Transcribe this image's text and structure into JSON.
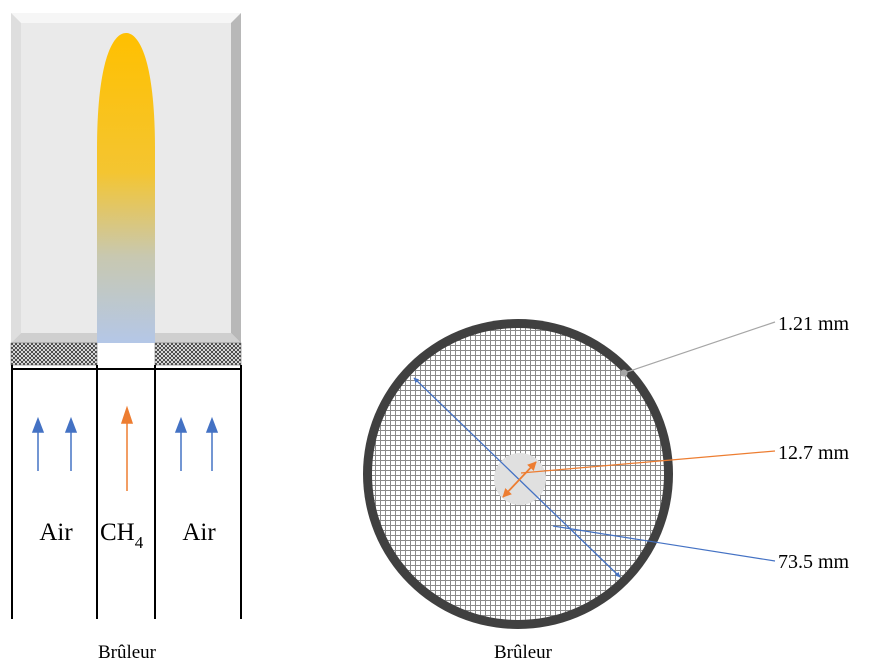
{
  "left_diagram": {
    "labels": {
      "air_left": "Air",
      "fuel": "CH",
      "fuel_subscript": "4",
      "air_right": "Air"
    },
    "caption": "Brûleur",
    "colors": {
      "flame_top": "#ffc000",
      "flame_bottom": "#b4c7e7",
      "air_arrow": "#4472c4",
      "fuel_arrow": "#ed7d31",
      "chimney": "#eaeaea"
    }
  },
  "right_diagram": {
    "caption": "Brûleur",
    "dimensions": {
      "wall": "1.21 mm",
      "fuel_tube": "12.7 mm",
      "outer_diameter": "73.5 mm"
    },
    "colors": {
      "rim": "#404040",
      "mesh": "#9a9a9a",
      "center": "#e0e0e0",
      "fuel_arrow": "#ed7d31",
      "diameter_arrow": "#4472c4",
      "wall_leader": "#a6a6a6"
    }
  }
}
